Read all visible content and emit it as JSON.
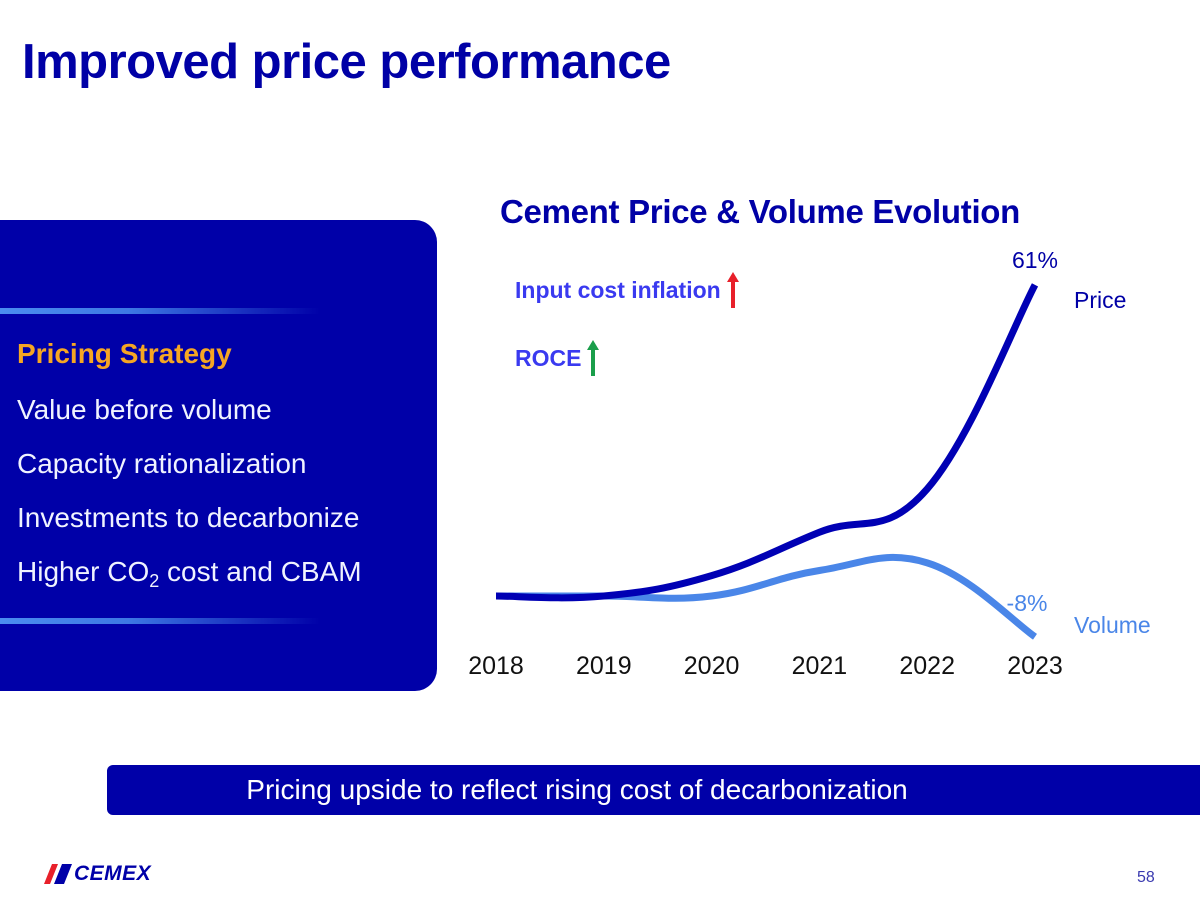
{
  "slide": {
    "title": "Improved price performance",
    "page_number": "58",
    "logo_text": "CEMEX",
    "banner_text": "Pricing upside to reflect rising cost of decarbonization"
  },
  "panel": {
    "heading": "Pricing Strategy",
    "items": [
      {
        "text": "Value before volume"
      },
      {
        "text": "Capacity rationalization"
      },
      {
        "text": "Investments to decarbonize"
      },
      {
        "pre": "Higher CO",
        "sub": "2",
        "post": " cost and CBAM"
      }
    ]
  },
  "annotations": [
    {
      "label": "Input cost inflation",
      "direction": "up",
      "color": "#e8202a"
    },
    {
      "label": "ROCE",
      "direction": "up",
      "color": "#1a9e4a"
    }
  ],
  "colors": {
    "brand_navy": "#0000a8",
    "accent_orange": "#f5a623",
    "price_line": "#0000b4",
    "volume_line": "#4a86e8",
    "annotation_text": "#3a3af0"
  },
  "chart_data": {
    "type": "line",
    "title": "Cement Price & Volume Evolution",
    "xlabel": "",
    "ylabel": "",
    "x": [
      "2018",
      "2019",
      "2020",
      "2021",
      "2022",
      "2023"
    ],
    "series": [
      {
        "name": "Price",
        "unit": "% cumulative change vs 2018",
        "values": [
          0,
          0,
          4,
          12.5,
          21,
          61
        ],
        "end_label": "61%",
        "color": "#0000b4"
      },
      {
        "name": "Volume",
        "unit": "% cumulative change vs 2018",
        "values": [
          0,
          0,
          0,
          5,
          6.5,
          -8
        ],
        "end_label": "-8%",
        "color": "#4a86e8"
      }
    ],
    "ylim": [
      -10,
      65
    ],
    "grid": false,
    "legend": "inline-right"
  }
}
